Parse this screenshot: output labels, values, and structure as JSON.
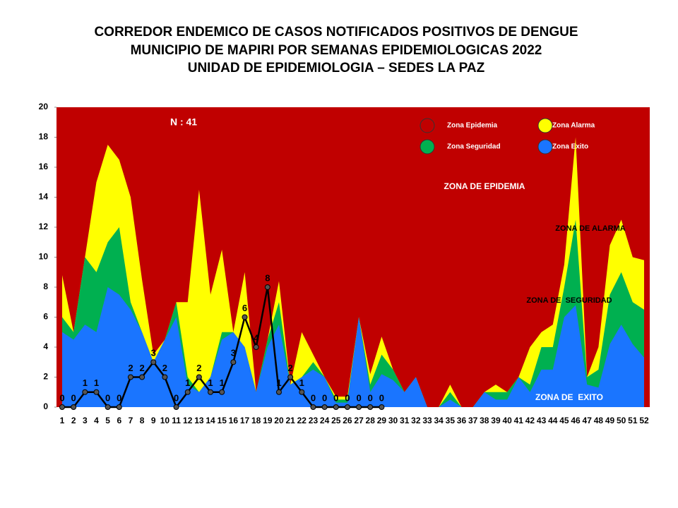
{
  "chart_data": {
    "type": "area",
    "title_lines": [
      "CORREDOR ENDEMICO DE CASOS NOTIFICADOS POSITIVOS DE DENGUE",
      "MUNICIPIO DE MAPIRI POR SEMANAS EPIDEMIOLOGICAS 2022",
      "UNIDAD DE EPIDEMIOLOGIA – SEDES LA PAZ"
    ],
    "categories": [
      "1",
      "2",
      "3",
      "4",
      "5",
      "6",
      "7",
      "8",
      "9",
      "10",
      "11",
      "12",
      "13",
      "14",
      "15",
      "16",
      "17",
      "18",
      "19",
      "20",
      "21",
      "22",
      "23",
      "24",
      "25",
      "26",
      "27",
      "28",
      "29",
      "30",
      "31",
      "32",
      "33",
      "34",
      "35",
      "36",
      "37",
      "38",
      "39",
      "40",
      "41",
      "42",
      "43",
      "44",
      "45",
      "46",
      "47",
      "48",
      "49",
      "50",
      "51",
      "52"
    ],
    "background": {
      "name": "Zona Epidemia",
      "color": "#c00000"
    },
    "series": [
      {
        "name": "Zona Alarma",
        "color": "#ffff00",
        "values": [
          8.8,
          5,
          10,
          15,
          17.5,
          16.5,
          14,
          8.5,
          3.5,
          4.5,
          7,
          7,
          14.5,
          7.5,
          10.5,
          5,
          9,
          1,
          4.5,
          8.4,
          1.5,
          5,
          3.5,
          2,
          0.7,
          0.7,
          6,
          2.2,
          4.7,
          2.5,
          1,
          2,
          0,
          0,
          1.5,
          0,
          0,
          1,
          1.5,
          1,
          2,
          4,
          5,
          5.5,
          9.5,
          18,
          2,
          4,
          10.8,
          12.5,
          10,
          9.8
        ]
      },
      {
        "name": "Zona Seguridad",
        "color": "#00b050",
        "values": [
          6,
          5,
          10,
          9,
          11,
          12,
          7,
          5,
          3,
          4.5,
          7,
          2,
          1,
          2,
          5,
          5,
          4,
          1,
          4.5,
          7,
          1.5,
          2,
          3,
          2,
          0.5,
          0.5,
          6,
          1.5,
          3.5,
          2.5,
          1,
          2,
          0,
          0,
          1,
          0,
          0,
          1,
          1,
          1,
          2,
          1.5,
          4,
          4,
          8,
          12.5,
          2,
          2.5,
          7.5,
          9,
          7,
          6.5
        ]
      },
      {
        "name": "Zona Exito",
        "color": "#1a75ff",
        "values": [
          5,
          4.5,
          5.5,
          5,
          8,
          7.5,
          6.5,
          5,
          3,
          4.5,
          6,
          1.5,
          1,
          2,
          4.5,
          5,
          4,
          1,
          4,
          5.5,
          1.5,
          2,
          2.5,
          2,
          0.3,
          0.3,
          6,
          1,
          2.2,
          1.8,
          1,
          2,
          0,
          0,
          0.5,
          0,
          0,
          1,
          0.5,
          0.5,
          2,
          1,
          2.5,
          2.5,
          6,
          6.8,
          1.5,
          1.3,
          4.2,
          5.5,
          4.2,
          3.3
        ]
      }
    ],
    "cases": {
      "color": "#000000",
      "values": [
        0,
        0,
        1,
        1,
        0,
        0,
        2,
        2,
        3,
        2,
        0,
        1,
        2,
        1,
        1,
        3,
        6,
        4,
        8,
        1,
        2,
        1,
        0,
        0,
        0,
        0,
        0,
        0,
        0,
        null,
        null,
        null,
        null,
        null,
        null,
        null,
        null,
        null,
        null,
        null,
        null,
        null,
        null,
        null,
        null,
        null,
        null,
        null,
        null,
        null,
        null,
        null
      ]
    },
    "annotations": [
      "N : 41",
      "ZONA DE EPIDEMIA",
      "ZONA DE ALARMA",
      "ZONA DE  SEGURIDAD",
      "ZONA DE  EXITO"
    ],
    "ylim": [
      0,
      20
    ],
    "yticks": [
      0,
      2,
      4,
      6,
      8,
      10,
      12,
      14,
      16,
      18,
      20
    ]
  }
}
